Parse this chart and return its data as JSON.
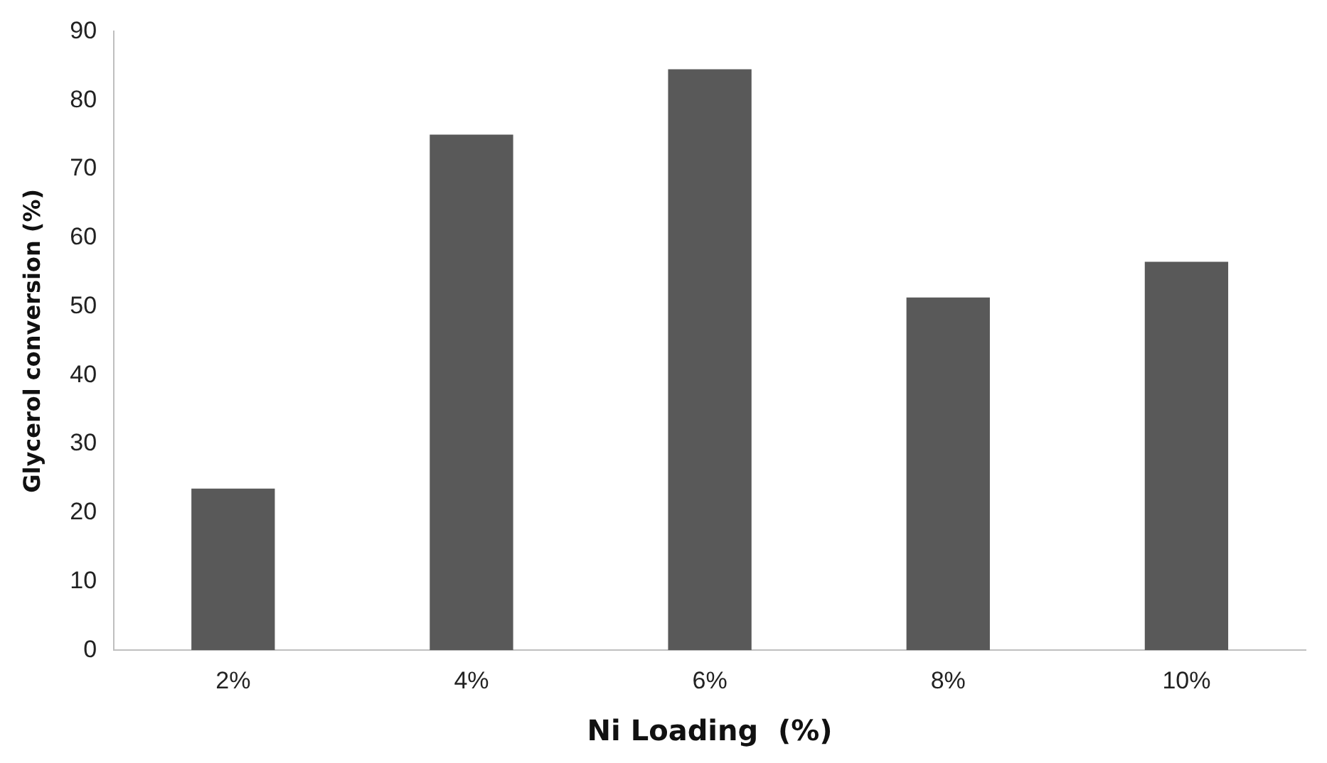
{
  "chart_data": {
    "type": "bar",
    "xlabel": "Ni Loading  (%)",
    "ylabel": "Glycerol conversion (%)",
    "categories": [
      "2%",
      "4%",
      "6%",
      "8%",
      "10%"
    ],
    "values": [
      23.5,
      75,
      84.5,
      51.3,
      56.5
    ],
    "color": "#595959",
    "ylim": [
      0,
      90
    ],
    "yticks": [
      0,
      10,
      20,
      30,
      40,
      50,
      60,
      70,
      80,
      90
    ],
    "grid": false,
    "legend": false
  }
}
